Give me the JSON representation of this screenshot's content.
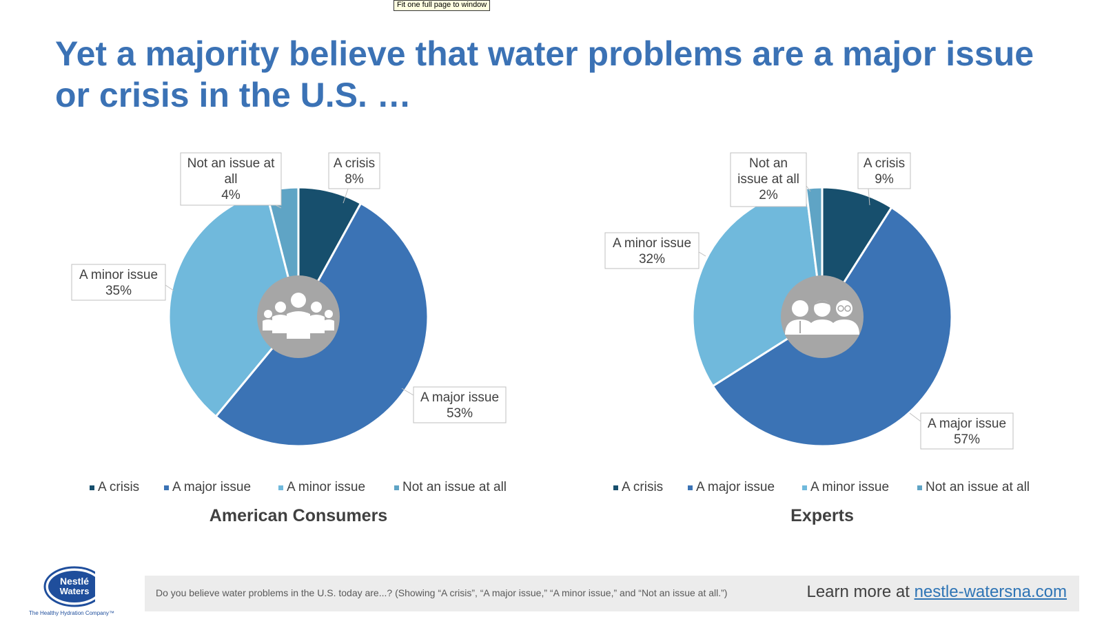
{
  "tooltip": "Fit one full page to window",
  "title": "Yet a majority believe that water problems are a major issue or crisis in the U.S. …",
  "colors": {
    "crisis": "#174f6d",
    "major": "#3b73b5",
    "minor": "#70b9dc",
    "not": "#5fa4c5",
    "center": "#a6a6a6"
  },
  "chart_data": [
    {
      "type": "pie",
      "title": "American Consumers",
      "categories": [
        "A crisis",
        "A major issue",
        "A minor issue",
        "Not an issue at all"
      ],
      "values": [
        8,
        53,
        35,
        4
      ],
      "data_labels": [
        [
          "A crisis",
          "8%"
        ],
        [
          "A major issue",
          "53%"
        ],
        [
          "A minor issue",
          "35%"
        ],
        [
          "Not an issue at",
          "all",
          "4%"
        ]
      ],
      "center_icon": "group-people-icon",
      "legend": "bottom"
    },
    {
      "type": "pie",
      "title": "Experts",
      "categories": [
        "A crisis",
        "A major issue",
        "A minor issue",
        "Not an issue at all"
      ],
      "values": [
        9,
        57,
        32,
        2
      ],
      "data_labels": [
        [
          "A crisis",
          "9%"
        ],
        [
          "A major issue",
          "57%"
        ],
        [
          "A minor issue",
          "32%"
        ],
        [
          "Not an",
          "issue at all",
          "2%"
        ]
      ],
      "center_icon": "experts-people-icon",
      "legend": "bottom"
    }
  ],
  "footer": {
    "question": "Do you believe water problems in the U.S. today are...? (Showing “A crisis”, “A major issue,” “A minor issue,” and “Not an issue at all.”)",
    "learn_more": "Learn more at ",
    "link": "nestle-watersna.com"
  },
  "logo": {
    "line1": "Nestlé",
    "line2": "Waters",
    "tagline": "The Healthy Hydration Company™"
  }
}
